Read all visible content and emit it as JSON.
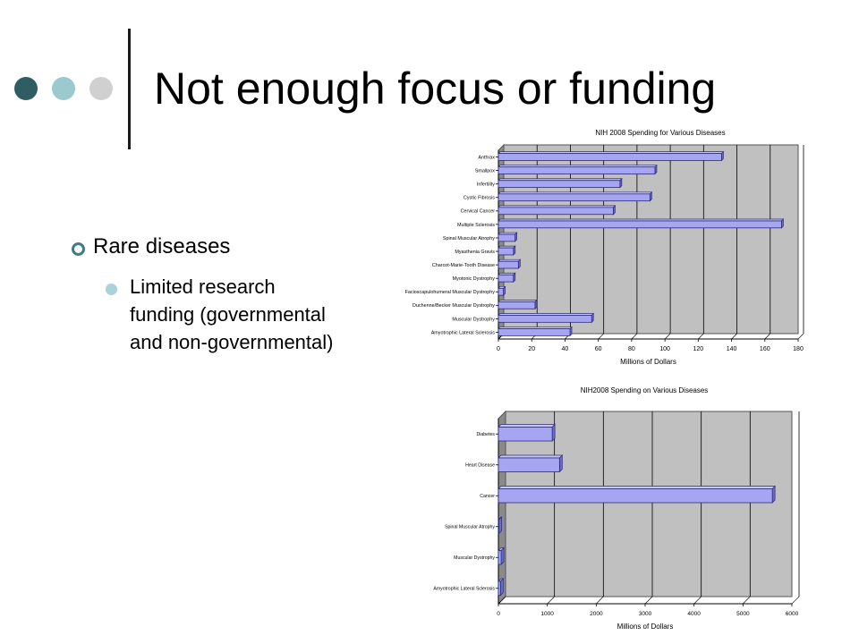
{
  "slide": {
    "title": "Not enough focus or funding",
    "bullet_level1": "Rare diseases",
    "bullet_level2": "Limited research funding (governmental and non-governmental)"
  },
  "colors": {
    "bar_fill": "#a5a5f2",
    "bar_edge": "#2b2b7a",
    "plot_bg": "#c0c0c0",
    "dot_dark": "#2e5e63",
    "dot_light": "#9cc9cf",
    "dot_gray": "#d0d0d0"
  },
  "chart_data": [
    {
      "type": "bar",
      "orientation": "horizontal",
      "title": "NIH 2008 Spending for Various Diseases",
      "xlabel": "Millions of Dollars",
      "xlim": [
        0,
        180
      ],
      "xticks": [
        0,
        20,
        40,
        60,
        80,
        100,
        120,
        140,
        160,
        180
      ],
      "grid": true,
      "categories": [
        "Anthrax",
        "Smallpox",
        "Infertility",
        "Cystic Fibrosis",
        "Cervical Cancer",
        "Multiple Sclerosis",
        "Spinal Muscular Atrophy",
        "Myasthenia Gravis",
        "Charcot-Marie-Tooth Disease",
        "Myotonic Dystrophy",
        "Facioscapulohumeral Muscular Dystrophy",
        "Duchenne/Becker Muscular Dystrophy",
        "Muscular Dystrophy",
        "Amyotrophic Lateral Sclerosis"
      ],
      "values": [
        134,
        94,
        73,
        91,
        69,
        170,
        10,
        9,
        12,
        9,
        3,
        22,
        56,
        43
      ]
    },
    {
      "type": "bar",
      "orientation": "horizontal",
      "title": "NIH2008 Spending on Various Diseases",
      "xlabel": "Millions of Dollars",
      "xlim": [
        0,
        6000
      ],
      "xticks": [
        0,
        1000,
        2000,
        3000,
        4000,
        5000,
        6000
      ],
      "grid": true,
      "categories": [
        "Diabetes",
        "Heart Disease",
        "Cancer",
        "Spinal Muscular Atrophy",
        "Muscular Dystrophy",
        "Amyotrophic Lateral Sclerosis"
      ],
      "values": [
        1100,
        1250,
        5600,
        10,
        56,
        43
      ]
    }
  ]
}
